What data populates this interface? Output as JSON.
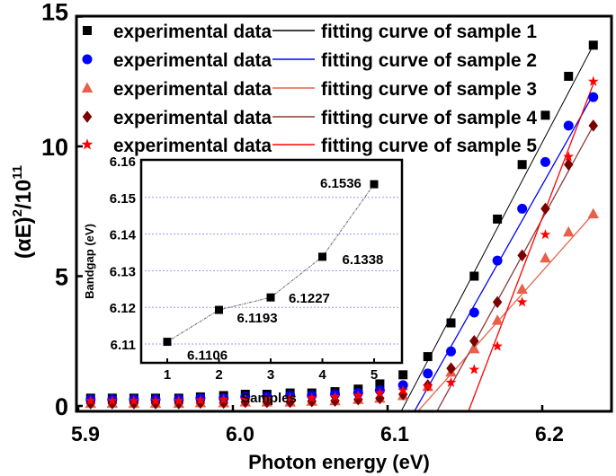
{
  "chart_data": [
    {
      "type": "scatter",
      "xlabel": "Photon energy (eV)",
      "ylabel": "(αE)²/10¹¹",
      "ylabel_parts": {
        "base": "(αE)",
        "sup1": "2",
        "mid": "/10",
        "sup2": "11"
      },
      "xlim": [
        5.9,
        6.245
      ],
      "ylim": [
        -0.2,
        15
      ],
      "xticks": [
        "5.9",
        "6.0",
        "6.1",
        "6.2"
      ],
      "xtick_values": [
        5.9,
        6.0,
        6.1,
        6.2
      ],
      "yticks": [
        "0",
        "5",
        "10",
        "15"
      ],
      "ytick_values": [
        0,
        5,
        10,
        15
      ],
      "legend_position": "top-left",
      "grid": false,
      "x": [
        5.908,
        5.922,
        5.936,
        5.95,
        5.965,
        5.979,
        5.994,
        6.008,
        6.022,
        6.037,
        6.051,
        6.066,
        6.081,
        6.095,
        6.11,
        6.126,
        6.141,
        6.156,
        6.171,
        6.187,
        6.202,
        6.217,
        6.233
      ],
      "series": [
        {
          "name": "experimental data",
          "marker": "square",
          "color": "#000000",
          "values": [
            0.3,
            0.3,
            0.3,
            0.3,
            0.3,
            0.35,
            0.4,
            0.45,
            0.45,
            0.5,
            0.5,
            0.55,
            0.65,
            0.85,
            1.2,
            1.9,
            3.2,
            5.0,
            7.2,
            9.3,
            11.2,
            12.7,
            13.9
          ]
        },
        {
          "name": "experimental data",
          "marker": "circle",
          "color": "#0000ff",
          "values": [
            0.25,
            0.25,
            0.25,
            0.25,
            0.25,
            0.3,
            0.3,
            0.35,
            0.35,
            0.4,
            0.4,
            0.45,
            0.5,
            0.6,
            0.8,
            1.25,
            2.1,
            3.6,
            5.6,
            7.6,
            9.4,
            10.8,
            11.9
          ]
        },
        {
          "name": "experimental data",
          "marker": "triangle",
          "color": "#e8604a",
          "values": [
            0.1,
            0.1,
            0.1,
            0.1,
            0.1,
            0.12,
            0.12,
            0.15,
            0.15,
            0.15,
            0.18,
            0.2,
            0.25,
            0.3,
            0.4,
            0.75,
            1.3,
            2.2,
            3.3,
            4.5,
            5.7,
            6.7,
            7.4
          ]
        },
        {
          "name": "experimental data",
          "marker": "diamond",
          "color": "#7a0000",
          "values": [
            0.1,
            0.1,
            0.1,
            0.1,
            0.1,
            0.12,
            0.12,
            0.15,
            0.15,
            0.15,
            0.18,
            0.2,
            0.25,
            0.3,
            0.45,
            0.8,
            1.45,
            2.5,
            4.0,
            5.8,
            7.6,
            9.3,
            10.8
          ]
        },
        {
          "name": "experimental data",
          "marker": "star",
          "color": "#ff0000",
          "values": [
            0.2,
            0.2,
            0.2,
            0.2,
            0.2,
            0.22,
            0.25,
            0.25,
            0.28,
            0.3,
            0.3,
            0.35,
            0.4,
            0.5,
            0.6,
            0.75,
            0.9,
            1.4,
            2.3,
            4.0,
            6.6,
            9.6,
            12.5
          ]
        }
      ],
      "fits": [
        {
          "name": "fitting curve of sample 1",
          "color": "#000000",
          "x": [
            6.1106,
            6.233
          ],
          "y": [
            0,
            13.9
          ]
        },
        {
          "name": "fitting curve of sample 2",
          "color": "#0000ff",
          "x": [
            6.1193,
            6.233
          ],
          "y": [
            0,
            12.0
          ]
        },
        {
          "name": "fitting curve of sample 3",
          "color": "#e8604a",
          "x": [
            6.1227,
            6.233
          ],
          "y": [
            0,
            7.4
          ]
        },
        {
          "name": "fitting curve of sample 4",
          "color": "#8b3a3a",
          "x": [
            6.1338,
            6.233
          ],
          "y": [
            0,
            10.8
          ]
        },
        {
          "name": "fitting curve of sample 5",
          "color": "#ff0000",
          "x": [
            6.1536,
            6.233
          ],
          "y": [
            0,
            12.4
          ]
        }
      ]
    },
    {
      "type": "line",
      "xlabel": "Samples",
      "ylabel": "Bandgap (eV)",
      "categories": [
        1,
        2,
        3,
        4,
        5
      ],
      "values": [
        6.1106,
        6.1193,
        6.1227,
        6.1338,
        6.1536
      ],
      "labels": [
        "6.1106",
        "6.1193",
        "6.1227",
        "6.1338",
        "6.1536"
      ],
      "xticks": [
        "1",
        "2",
        "3",
        "4",
        "5"
      ],
      "yticks": [
        "6.11",
        "6.12",
        "6.13",
        "6.14",
        "6.15",
        "6.16"
      ],
      "ytick_values": [
        6.11,
        6.12,
        6.13,
        6.14,
        6.15,
        6.16
      ],
      "xlim": [
        0.5,
        5.55
      ],
      "ylim": [
        6.105,
        6.16
      ],
      "grid": true,
      "marker": "square",
      "color": "#000000"
    }
  ]
}
